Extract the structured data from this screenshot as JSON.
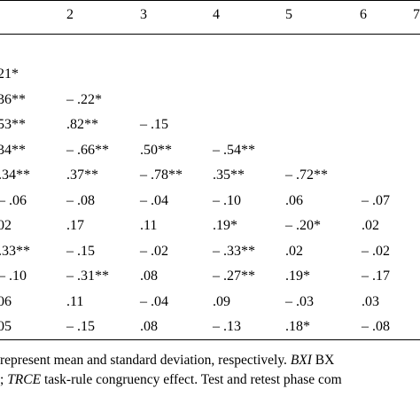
{
  "table": {
    "column_headers": [
      "2",
      "3",
      "4",
      "5",
      "6",
      "7"
    ],
    "rows": [
      [
        "21*"
      ],
      [
        "36**",
        "– .22*"
      ],
      [
        "53**",
        ".82**",
        "– .15"
      ],
      [
        "34**",
        "– .66**",
        ".50**",
        "– .54**"
      ],
      [
        ".34**",
        ".37**",
        "– .78**",
        ".35**",
        "– .72**"
      ],
      [
        "– .06",
        "– .08",
        "– .04",
        "– .10",
        ".06",
        "– .07"
      ],
      [
        "02",
        ".17",
        ".11",
        ".19*",
        "– .20*",
        ".02"
      ],
      [
        ".33**",
        "– .15",
        "– .02",
        "– .33**",
        ".02",
        "– .02"
      ],
      [
        "– .10",
        "– .31**",
        ".08",
        "– .27**",
        ".19*",
        "– .17"
      ],
      [
        "06",
        ".11",
        "– .04",
        ".09",
        "– .03",
        ".03"
      ],
      [
        "05",
        "– .15",
        ".08",
        "– .13",
        ".18*",
        "– .08"
      ]
    ],
    "notes": {
      "line1_a": "represent mean and standard deviation, respectively. ",
      "line1_b": "BXI",
      "line1_c": " BX",
      "line2_a": "; ",
      "line2_b": "TRCE",
      "line2_c": " task-rule congruency effect. Test and retest phase com"
    }
  }
}
